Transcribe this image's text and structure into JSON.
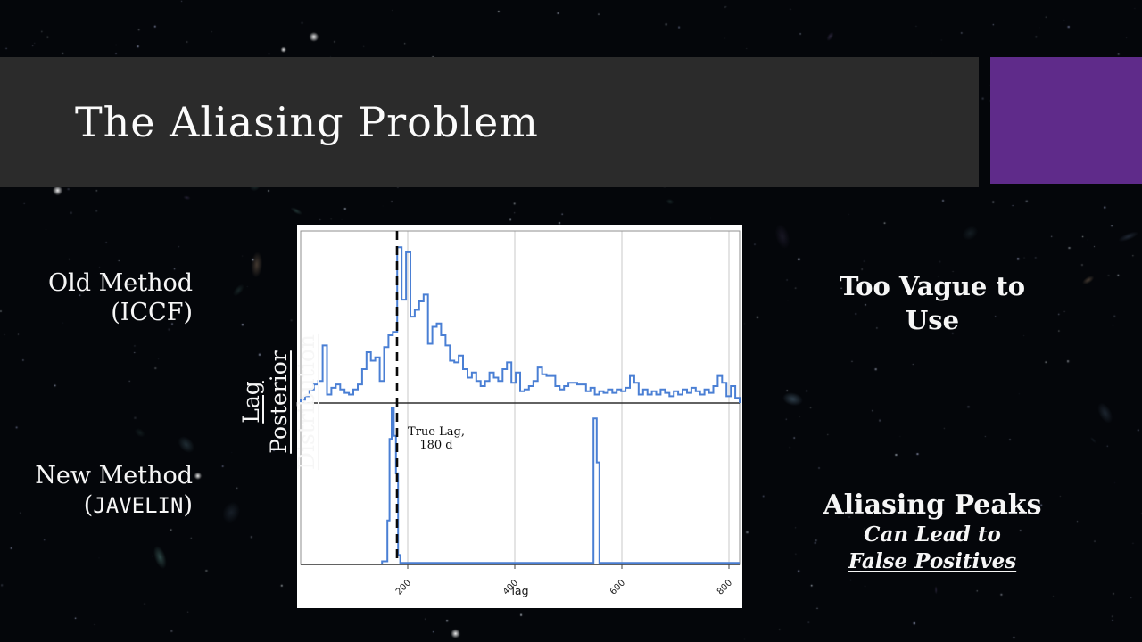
{
  "colors": {
    "title_bar": "#2b2b2b",
    "accent_purple": "#5f2b8a",
    "histogram_blue": "#4a7fd4",
    "slide_text": "#f6f6f6"
  },
  "title": {
    "text": "The Aliasing Problem"
  },
  "left_labels": {
    "old_method": {
      "line1": "Old Method",
      "line2": "(ICCF)"
    },
    "new_method": {
      "line1": "New Method",
      "line2_prefix": "(",
      "line2_mono": "JAVELIN",
      "line2_suffix": ")"
    },
    "axis_caption": {
      "line1": "Lag Posterior",
      "line2": "Distribution"
    }
  },
  "right_labels": {
    "iccf_verdict": {
      "line1": "Too Vague to",
      "line2": "Use"
    },
    "javelin_verdict": {
      "line1": "Aliasing Peaks",
      "line2": "Can Lead to",
      "line3": "False Positives"
    }
  },
  "chart_data": {
    "type": "bar",
    "style": "two stacked step-histogram panels sharing one x axis",
    "title": "",
    "xlabel": "lag",
    "ylabel": "",
    "xlim": [
      0,
      820
    ],
    "xticks": [
      200,
      400,
      600,
      800
    ],
    "xtick_rotation_deg": 45,
    "grid": "vertical gridlines at xticks, both panels",
    "y_units": "relative density (y axis unlabeled)",
    "true_lag": {
      "value": 180,
      "line_style": "dashed black vertical line through both panels",
      "annotation_line1": "True Lag,",
      "annotation_line2": "180 d"
    },
    "panels": [
      {
        "name": "ICCF lag distribution (top panel)",
        "bin_start": 0,
        "bin_width": 8.2,
        "values": [
          0.02,
          0.04,
          0.08,
          0.11,
          0.13,
          0.34,
          0.05,
          0.09,
          0.11,
          0.08,
          0.06,
          0.05,
          0.08,
          0.11,
          0.2,
          0.3,
          0.25,
          0.27,
          0.13,
          0.33,
          0.4,
          0.42,
          0.92,
          0.61,
          0.89,
          0.51,
          0.55,
          0.6,
          0.64,
          0.35,
          0.45,
          0.47,
          0.4,
          0.34,
          0.25,
          0.24,
          0.28,
          0.2,
          0.15,
          0.18,
          0.13,
          0.1,
          0.13,
          0.18,
          0.15,
          0.13,
          0.2,
          0.24,
          0.12,
          0.18,
          0.07,
          0.08,
          0.1,
          0.13,
          0.21,
          0.17,
          0.16,
          0.16,
          0.1,
          0.08,
          0.1,
          0.12,
          0.12,
          0.11,
          0.11,
          0.07,
          0.09,
          0.05,
          0.07,
          0.06,
          0.08,
          0.06,
          0.08,
          0.07,
          0.09,
          0.16,
          0.12,
          0.05,
          0.08,
          0.05,
          0.07,
          0.05,
          0.08,
          0.06,
          0.04,
          0.07,
          0.05,
          0.08,
          0.06,
          0.09,
          0.07,
          0.05,
          0.08,
          0.06,
          0.1,
          0.16,
          0.12,
          0.04,
          0.1,
          0.03
        ]
      },
      {
        "name": "JAVELIN lag posterior (bottom panel)",
        "segments_lagstart_lagend_value": [
          [
            152,
            162,
            0.02
          ],
          [
            162,
            166,
            0.28
          ],
          [
            166,
            170,
            0.8
          ],
          [
            170,
            174,
            1.0
          ],
          [
            174,
            178,
            0.82
          ],
          [
            178,
            182,
            0.58
          ],
          [
            182,
            186,
            0.06
          ],
          [
            186,
            547,
            0.01
          ],
          [
            547,
            553,
            0.93
          ],
          [
            553,
            558,
            0.65
          ],
          [
            558,
            818,
            0.01
          ]
        ]
      }
    ]
  }
}
